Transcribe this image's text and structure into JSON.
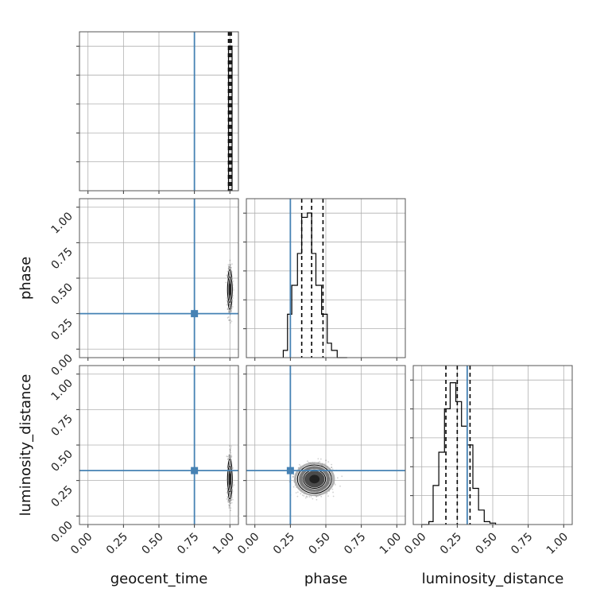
{
  "chart_data": {
    "type": "corner",
    "parameters": [
      "geocent_time",
      "phase",
      "luminosity_distance"
    ],
    "axis_labels": {
      "x": [
        "geocent_time",
        "phase",
        "luminosity_distance"
      ],
      "y": [
        "phase",
        "luminosity_distance"
      ]
    },
    "ticks": [
      0.0,
      0.25,
      0.5,
      0.75,
      1.0
    ],
    "tick_labels": [
      "0.00",
      "0.25",
      "0.50",
      "0.75",
      "1.00"
    ],
    "axis_range": [
      -0.06,
      1.06
    ],
    "grid": true,
    "truth_color": "#4682b4",
    "truths": {
      "geocent_time": 0.75,
      "phase": 0.25,
      "luminosity_distance": 0.32
    },
    "quantiles": {
      "geocent_time": [
        0.99,
        1.0,
        1.01
      ],
      "phase": [
        0.33,
        0.4,
        0.48
      ],
      "luminosity_distance": [
        0.17,
        0.25,
        0.34
      ]
    },
    "histograms": {
      "geocent_time": {
        "edges": [
          0.985,
          0.99,
          1.0,
          1.015
        ],
        "counts": [
          0,
          1.0,
          1.0
        ]
      },
      "phase": {
        "edges": [
          0.2,
          0.23,
          0.26,
          0.3,
          0.33,
          0.37,
          0.4,
          0.43,
          0.47,
          0.51,
          0.54,
          0.58,
          0.61,
          0.65
        ],
        "counts": [
          0.05,
          0.3,
          0.5,
          0.72,
          0.97,
          1.0,
          0.72,
          0.5,
          0.3,
          0.1,
          0.05,
          0.0,
          0.0
        ]
      },
      "luminosity_distance": {
        "edges": [
          0.0,
          0.05,
          0.08,
          0.12,
          0.16,
          0.2,
          0.24,
          0.28,
          0.32,
          0.36,
          0.4,
          0.44,
          0.48,
          0.52
        ],
        "counts": [
          0.0,
          0.02,
          0.27,
          0.5,
          0.8,
          0.98,
          0.85,
          0.68,
          0.55,
          0.25,
          0.1,
          0.02,
          0.01
        ]
      }
    },
    "joint": {
      "phase_vs_geocent_time": {
        "center": [
          1.0,
          0.42
        ],
        "spread": [
          0.008,
          0.07
        ],
        "range_y": [
          0.21,
          0.62
        ]
      },
      "luminosity_distance_vs_geocent_time": {
        "center": [
          1.0,
          0.26
        ],
        "spread": [
          0.008,
          0.07
        ],
        "range_y": [
          0.08,
          0.58
        ]
      },
      "luminosity_distance_vs_phase": {
        "center": [
          0.42,
          0.26
        ],
        "spread": [
          0.06,
          0.05
        ],
        "range_x": [
          0.18,
          0.7
        ],
        "range_y": [
          0.07,
          0.55
        ]
      }
    }
  }
}
